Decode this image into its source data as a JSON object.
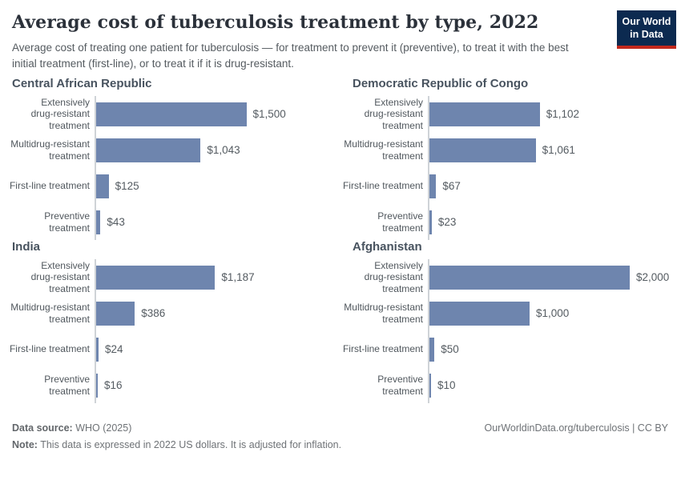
{
  "header": {
    "title": "Average cost of tuberculosis treatment by type, 2022",
    "subtitle": "Average cost of treating one patient for tuberculosis — for treatment to prevent it (preventive), to treat it with the best initial treatment (first-line), or to treat it if it is drug-resistant.",
    "logo": {
      "line1": "Our World",
      "line2": "in Data"
    }
  },
  "chart_data": {
    "type": "bar",
    "orientation": "horizontal",
    "unit": "US$ (2022, inflation-adjusted)",
    "xmax": 2000,
    "grid": false,
    "legend": "none",
    "categories": [
      "Extensively drug-resistant treatment",
      "Multidrug-resistant treatment",
      "First-line treatment",
      "Preventive treatment"
    ],
    "category_display": [
      "Extensively\ndrug-resistant\ntreatment",
      "Multidrug-resistant\ntreatment",
      "First-line treatment",
      "Preventive\ntreatment"
    ],
    "panels": [
      {
        "title": "Central African Republic",
        "values": [
          1500,
          1043,
          125,
          43
        ],
        "value_labels": [
          "$1,500",
          "$1,043",
          "$125",
          "$43"
        ]
      },
      {
        "title": "Democratic Republic of Congo",
        "values": [
          1102,
          1061,
          67,
          23
        ],
        "value_labels": [
          "$1,102",
          "$1,061",
          "$67",
          "$23"
        ]
      },
      {
        "title": "India",
        "values": [
          1187,
          386,
          24,
          16
        ],
        "value_labels": [
          "$1,187",
          "$386",
          "$24",
          "$16"
        ]
      },
      {
        "title": "Afghanistan",
        "values": [
          2000,
          1000,
          50,
          10
        ],
        "value_labels": [
          "$2,000",
          "$1,000",
          "$50",
          "$10"
        ]
      }
    ],
    "bar_color": "#6e85ae",
    "axis_line_color": "#cfd3d7"
  },
  "footer": {
    "source_label": "Data source:",
    "source_value": " WHO (2025)",
    "attribution": "OurWorldinData.org/tuberculosis | CC BY",
    "note_label": "Note:",
    "note_value": " This data is expressed in 2022 US dollars. It is adjusted for inflation."
  },
  "colors": {
    "bar": "#6e85ae",
    "logo_background": "#0c2a50",
    "logo_stripe": "#c2281c",
    "title_text": "#2b313a",
    "muted_text": "#555b60"
  }
}
